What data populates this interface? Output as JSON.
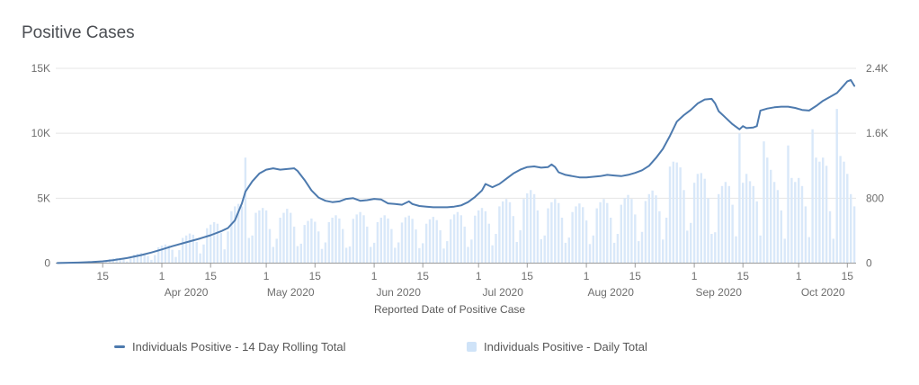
{
  "chart_data": {
    "type": [
      "line",
      "bar"
    ],
    "title": "Positive Cases",
    "xlabel": "Reported Date of Positive Case",
    "start_date": "2020-03-02",
    "end_date": "2020-10-17",
    "left_axis": {
      "max": 15000,
      "ticks": [
        {
          "value": 0,
          "label": "0"
        },
        {
          "value": 5000,
          "label": "5K"
        },
        {
          "value": 10000,
          "label": "10K"
        },
        {
          "value": 15000,
          "label": "15K"
        }
      ]
    },
    "right_axis": {
      "max": 2400,
      "ticks": [
        {
          "value": 0,
          "label": "0"
        },
        {
          "value": 800,
          "label": "800"
        },
        {
          "value": 1600,
          "label": "1.6K"
        },
        {
          "value": 2400,
          "label": "2.4K"
        }
      ]
    },
    "x_ticks": [
      {
        "date": "2020-03-15",
        "label": "15"
      },
      {
        "date": "2020-04-01",
        "label": "1"
      },
      {
        "date": "2020-04-15",
        "label": "15"
      },
      {
        "date": "2020-05-01",
        "label": "1"
      },
      {
        "date": "2020-05-15",
        "label": "15"
      },
      {
        "date": "2020-06-01",
        "label": "1"
      },
      {
        "date": "2020-06-15",
        "label": "15"
      },
      {
        "date": "2020-07-01",
        "label": "1"
      },
      {
        "date": "2020-07-15",
        "label": "15"
      },
      {
        "date": "2020-08-01",
        "label": "1"
      },
      {
        "date": "2020-08-15",
        "label": "15"
      },
      {
        "date": "2020-09-01",
        "label": "1"
      },
      {
        "date": "2020-09-15",
        "label": "15"
      },
      {
        "date": "2020-10-01",
        "label": "1"
      },
      {
        "date": "2020-10-15",
        "label": "15"
      }
    ],
    "month_labels": [
      {
        "date": "2020-04-08",
        "label": "Apr 2020"
      },
      {
        "date": "2020-05-08",
        "label": "May 2020"
      },
      {
        "date": "2020-06-08",
        "label": "Jun 2020"
      },
      {
        "date": "2020-07-08",
        "label": "Jul 2020"
      },
      {
        "date": "2020-08-08",
        "label": "Aug 2020"
      },
      {
        "date": "2020-09-08",
        "label": "Sep 2020"
      },
      {
        "date": "2020-10-08",
        "label": "Oct 2020"
      }
    ],
    "colors": {
      "line": "#4d7aae",
      "bar": "#d9e8f9",
      "legend_square": "#cfe3f8",
      "gridline": "#e4e4e4",
      "axis": "#9b9b9b"
    },
    "series": [
      {
        "name": "Individuals Positive - 14 Day Rolling Total",
        "type": "line",
        "axis": "left",
        "color": "#4d7aae",
        "points": [
          [
            "2020-03-02",
            10
          ],
          [
            "2020-03-08",
            45
          ],
          [
            "2020-03-12",
            85
          ],
          [
            "2020-03-15",
            140
          ],
          [
            "2020-03-18",
            230
          ],
          [
            "2020-03-22",
            390
          ],
          [
            "2020-03-26",
            620
          ],
          [
            "2020-03-29",
            820
          ],
          [
            "2020-04-01",
            1050
          ],
          [
            "2020-04-04",
            1300
          ],
          [
            "2020-04-08",
            1600
          ],
          [
            "2020-04-12",
            1900
          ],
          [
            "2020-04-15",
            2150
          ],
          [
            "2020-04-18",
            2450
          ],
          [
            "2020-04-20",
            2700
          ],
          [
            "2020-04-22",
            3300
          ],
          [
            "2020-04-24",
            4600
          ],
          [
            "2020-04-25",
            5500
          ],
          [
            "2020-04-27",
            6300
          ],
          [
            "2020-04-29",
            6900
          ],
          [
            "2020-05-01",
            7200
          ],
          [
            "2020-05-03",
            7300
          ],
          [
            "2020-05-05",
            7200
          ],
          [
            "2020-05-07",
            7250
          ],
          [
            "2020-05-09",
            7300
          ],
          [
            "2020-05-10",
            7100
          ],
          [
            "2020-05-12",
            6400
          ],
          [
            "2020-05-14",
            5600
          ],
          [
            "2020-05-16",
            5050
          ],
          [
            "2020-05-18",
            4800
          ],
          [
            "2020-05-20",
            4700
          ],
          [
            "2020-05-22",
            4750
          ],
          [
            "2020-05-24",
            4950
          ],
          [
            "2020-05-26",
            5000
          ],
          [
            "2020-05-28",
            4800
          ],
          [
            "2020-05-30",
            4850
          ],
          [
            "2020-06-01",
            4950
          ],
          [
            "2020-06-03",
            4900
          ],
          [
            "2020-06-05",
            4600
          ],
          [
            "2020-06-07",
            4550
          ],
          [
            "2020-06-09",
            4500
          ],
          [
            "2020-06-11",
            4750
          ],
          [
            "2020-06-12",
            4550
          ],
          [
            "2020-06-14",
            4400
          ],
          [
            "2020-06-16",
            4350
          ],
          [
            "2020-06-18",
            4300
          ],
          [
            "2020-06-20",
            4300
          ],
          [
            "2020-06-22",
            4300
          ],
          [
            "2020-06-24",
            4350
          ],
          [
            "2020-06-26",
            4450
          ],
          [
            "2020-06-28",
            4700
          ],
          [
            "2020-06-30",
            5100
          ],
          [
            "2020-07-02",
            5600
          ],
          [
            "2020-07-03",
            6100
          ],
          [
            "2020-07-05",
            5850
          ],
          [
            "2020-07-07",
            6100
          ],
          [
            "2020-07-09",
            6500
          ],
          [
            "2020-07-11",
            6900
          ],
          [
            "2020-07-13",
            7200
          ],
          [
            "2020-07-15",
            7400
          ],
          [
            "2020-07-17",
            7450
          ],
          [
            "2020-07-19",
            7350
          ],
          [
            "2020-07-21",
            7400
          ],
          [
            "2020-07-22",
            7600
          ],
          [
            "2020-07-23",
            7400
          ],
          [
            "2020-07-24",
            7000
          ],
          [
            "2020-07-26",
            6800
          ],
          [
            "2020-07-28",
            6700
          ],
          [
            "2020-07-30",
            6600
          ],
          [
            "2020-08-01",
            6600
          ],
          [
            "2020-08-03",
            6650
          ],
          [
            "2020-08-05",
            6700
          ],
          [
            "2020-08-07",
            6800
          ],
          [
            "2020-08-09",
            6750
          ],
          [
            "2020-08-11",
            6700
          ],
          [
            "2020-08-13",
            6800
          ],
          [
            "2020-08-15",
            6950
          ],
          [
            "2020-08-17",
            7150
          ],
          [
            "2020-08-19",
            7500
          ],
          [
            "2020-08-21",
            8100
          ],
          [
            "2020-08-23",
            8800
          ],
          [
            "2020-08-25",
            9800
          ],
          [
            "2020-08-27",
            10900
          ],
          [
            "2020-08-29",
            11400
          ],
          [
            "2020-08-31",
            11800
          ],
          [
            "2020-09-02",
            12300
          ],
          [
            "2020-09-04",
            12600
          ],
          [
            "2020-09-06",
            12650
          ],
          [
            "2020-09-07",
            12300
          ],
          [
            "2020-09-08",
            11700
          ],
          [
            "2020-09-10",
            11200
          ],
          [
            "2020-09-12",
            10700
          ],
          [
            "2020-09-14",
            10300
          ],
          [
            "2020-09-15",
            10550
          ],
          [
            "2020-09-16",
            10400
          ],
          [
            "2020-09-18",
            10450
          ],
          [
            "2020-09-19",
            10550
          ],
          [
            "2020-09-20",
            11750
          ],
          [
            "2020-09-22",
            11900
          ],
          [
            "2020-09-24",
            12000
          ],
          [
            "2020-09-26",
            12050
          ],
          [
            "2020-09-28",
            12050
          ],
          [
            "2020-09-30",
            11950
          ],
          [
            "2020-10-02",
            11800
          ],
          [
            "2020-10-04",
            11750
          ],
          [
            "2020-10-06",
            12100
          ],
          [
            "2020-10-08",
            12500
          ],
          [
            "2020-10-10",
            12800
          ],
          [
            "2020-10-12",
            13100
          ],
          [
            "2020-10-14",
            13700
          ],
          [
            "2020-10-15",
            14000
          ],
          [
            "2020-10-16",
            14100
          ],
          [
            "2020-10-17",
            13650
          ]
        ]
      },
      {
        "name": "Individuals Positive - Daily Total",
        "type": "bar",
        "axis": "right",
        "color": "#d9e8f9",
        "values": [
          3,
          5,
          6,
          7,
          8,
          6,
          3,
          10,
          20,
          24,
          26,
          25,
          18,
          9,
          25,
          50,
          58,
          62,
          60,
          45,
          20,
          55,
          105,
          115,
          125,
          120,
          90,
          40,
          100,
          195,
          215,
          230,
          220,
          165,
          75,
          160,
          310,
          340,
          365,
          350,
          260,
          120,
          230,
          430,
          475,
          505,
          485,
          370,
          170,
          390,
          640,
          700,
          730,
          700,
          1300,
          310,
          340,
          620,
          650,
          680,
          650,
          420,
          200,
          300,
          560,
          620,
          670,
          620,
          450,
          210,
          240,
          470,
          520,
          550,
          510,
          390,
          175,
          255,
          505,
          560,
          590,
          550,
          420,
          190,
          205,
          545,
          600,
          630,
          590,
          450,
          200,
          250,
          505,
          560,
          590,
          550,
          420,
          190,
          255,
          500,
          565,
          585,
          545,
          415,
          185,
          245,
          485,
          540,
          570,
          530,
          405,
          180,
          270,
          540,
          600,
          630,
          590,
          450,
          200,
          290,
          585,
          650,
          680,
          640,
          485,
          220,
          360,
          700,
          760,
          790,
          750,
          580,
          260,
          405,
          790,
          860,
          900,
          850,
          650,
          295,
          340,
          675,
          750,
          790,
          740,
          560,
          250,
          315,
          630,
          700,
          735,
          690,
          525,
          235,
          340,
          675,
          750,
          790,
          740,
          560,
          250,
          360,
          720,
          800,
          840,
          790,
          600,
          270,
          385,
          765,
          850,
          895,
          835,
          640,
          290,
          560,
          1190,
          1250,
          1240,
          1180,
          900,
          400,
          495,
          990,
          1100,
          1110,
          1040,
          800,
          360,
          380,
          850,
          950,
          1000,
          950,
          720,
          330,
          1600,
          990,
          1100,
          1010,
          950,
          760,
          340,
          1500,
          1300,
          1150,
          1000,
          900,
          650,
          300,
          1450,
          1050,
          1000,
          1050,
          950,
          700,
          320,
          1650,
          1300,
          1250,
          1300,
          1200,
          640,
          300,
          1900,
          1320,
          1250,
          1100,
          850,
          700
        ]
      }
    ],
    "legend": {
      "items": [
        {
          "label": "Individuals Positive - 14 Day Rolling Total",
          "marker": "line"
        },
        {
          "label": "Individuals Positive - Daily Total",
          "marker": "square"
        }
      ]
    }
  }
}
